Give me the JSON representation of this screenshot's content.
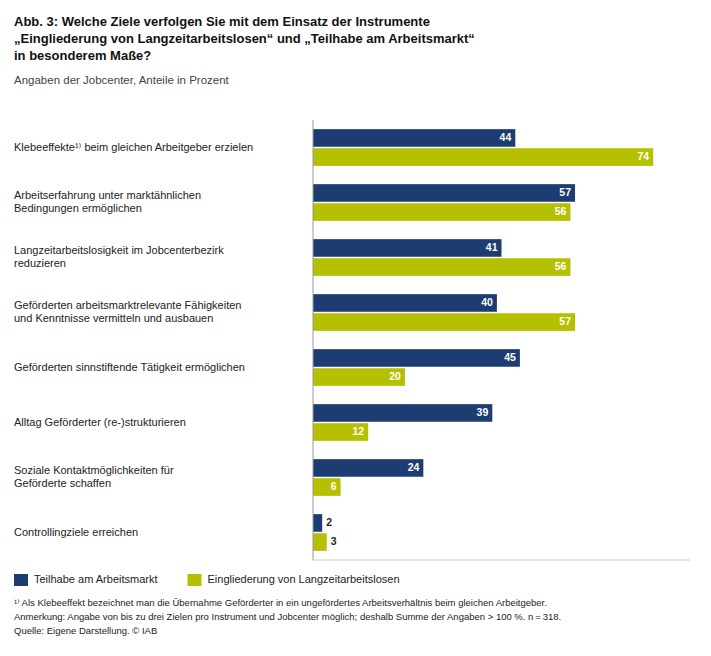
{
  "chart_data": {
    "type": "bar",
    "orientation": "horizontal",
    "title": "Abb. 3: Welche Ziele verfolgen Sie mit dem Einsatz der Instrumente\n„Eingliederung von Langzeitarbeitslosen“ und „Teilhabe am Arbeitsmarkt“\nin besonderem Maße?",
    "subtitle": "Angaben der Jobcenter, Anteile in Prozent",
    "categories": [
      "Klebeeffekte¹⁾ beim gleichen Arbeitgeber erzielen",
      "Arbeitserfahrung unter marktähnlichen\nBedingungen ermöglichen",
      "Langzeitarbeitslosigkeit im Jobcenterbezirk\nreduzieren",
      "Geförderten arbeitsmarktrelevante Fähigkeiten\nund Kenntnisse vermitteln und ausbauen",
      "Geförderten sinnstiftende Tätigkeit ermöglichen",
      "Alltag Geförderter (re-)strukturieren",
      "Soziale Kontaktmöglichkeiten für\nGeförderte schaffen",
      "Controllingziele erreichen"
    ],
    "series": [
      {
        "name": "Teilhabe am Arbeitsmarkt",
        "color": "#1d3d72",
        "values": [
          44,
          57,
          41,
          40,
          45,
          39,
          24,
          2
        ]
      },
      {
        "name": "Eingliederung von Langzeitarbeitslosen",
        "color": "#b5c000",
        "values": [
          74,
          56,
          56,
          57,
          20,
          12,
          6,
          3
        ]
      }
    ],
    "xlim": [
      0,
      82
    ],
    "tick_labels": false,
    "grid": false,
    "data_labels": true,
    "legend": "lower left",
    "annotations": [
      "¹⁾ Als Klebeeffekt bezeichnet man die Übernahme Geförderter in ein ungefördertes Arbeitsverhältnis beim gleichen Arbeitgeber.",
      "Anmerkung: Angabe von bis zu drei Zielen pro Instrument und Jobcenter möglich; deshalb Summe der Angaben > 100 %. n = 318.",
      "Quelle: Eigene Darstellung. © IAB"
    ]
  }
}
